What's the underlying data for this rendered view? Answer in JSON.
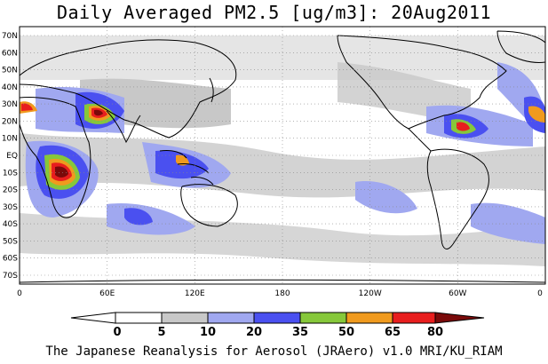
{
  "title": "Daily Averaged PM2.5 [ug/m3]: 20Aug2011",
  "lat_labels": [
    "70N",
    "60N",
    "50N",
    "40N",
    "30N",
    "20N",
    "10N",
    "EQ",
    "10S",
    "20S",
    "30S",
    "40S",
    "50S",
    "60S",
    "70S"
  ],
  "lon_labels": [
    "0",
    "60E",
    "120E",
    "180",
    "120W",
    "60W",
    "0"
  ],
  "colorbar": {
    "levels": [
      "0",
      "5",
      "10",
      "20",
      "35",
      "50",
      "65",
      "80"
    ],
    "colors": [
      "#ffffff",
      "#c8c8c8",
      "#a0a8f0",
      "#4a50f0",
      "#86c83a",
      "#f09a1e",
      "#e81e1e",
      "#7a0a0a"
    ]
  },
  "credit": "The Japanese Reanalysis for Aerosol (JRAero) v1.0 MRI/KU_RIAM"
}
